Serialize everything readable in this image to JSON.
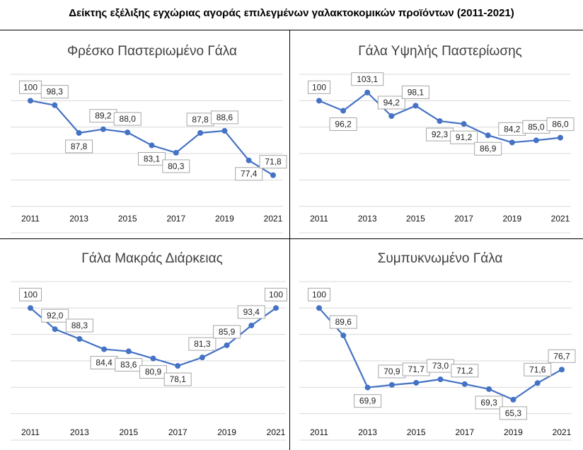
{
  "title": "Δείκτης εξέλιξης εγχώριας αγοράς επιλεγμένων γαλακτοκομικών προϊόντων (2011-2021)",
  "colors": {
    "line": "#4472C4",
    "grid": "#d9d9d9",
    "label_border": "#a6a6a6"
  },
  "chart_data": [
    {
      "type": "line",
      "title": "Φρέσκο Παστεριωμένο Γάλα",
      "x": [
        "2011",
        "2012",
        "2013",
        "2014",
        "2015",
        "2016",
        "2017",
        "2018",
        "2019",
        "2020",
        "2021"
      ],
      "x_tick_labels": [
        "2011",
        "2013",
        "2015",
        "2017",
        "2019",
        "2021"
      ],
      "values": [
        100,
        98.3,
        87.8,
        89.2,
        88.0,
        83.1,
        80.3,
        87.8,
        88.6,
        77.4,
        71.8
      ],
      "labels": [
        "100",
        "98,3",
        "87,8",
        "89,2",
        "88,0",
        "83,1",
        "80,3",
        "87,8",
        "88,6",
        "77,4",
        "71,8"
      ],
      "ylim": [
        50,
        110
      ],
      "grid": true
    },
    {
      "type": "line",
      "title": "Γάλα Υψηλής Παστερίωσης",
      "x": [
        "2011",
        "2012",
        "2013",
        "2014",
        "2015",
        "2016",
        "2017",
        "2018",
        "2019",
        "2020",
        "2021"
      ],
      "x_tick_labels": [
        "2011",
        "2013",
        "2015",
        "2017",
        "2019",
        "2021"
      ],
      "values": [
        100,
        96.2,
        103.1,
        94.2,
        98.1,
        92.3,
        91.2,
        86.9,
        84.2,
        85.0,
        86.0
      ],
      "labels": [
        "100",
        "96,2",
        "103,1",
        "94,2",
        "98,1",
        "92,3",
        "91,2",
        "86,9",
        "84,2",
        "85,0",
        "86,0"
      ],
      "ylim": [
        50,
        110
      ],
      "grid": true
    },
    {
      "type": "line",
      "title": "Γάλα Μακράς Διάρκειας",
      "x": [
        "2011",
        "2012",
        "2013",
        "2014",
        "2015",
        "2016",
        "2017",
        "2018",
        "2019",
        "2020",
        "2021"
      ],
      "x_tick_labels": [
        "2011",
        "2013",
        "2015",
        "2017",
        "2019",
        "2021"
      ],
      "values": [
        100,
        92.0,
        88.3,
        84.4,
        83.6,
        80.9,
        78.1,
        81.3,
        85.9,
        93.4,
        100
      ],
      "labels": [
        "100",
        "92,0",
        "88,3",
        "84,4",
        "83,6",
        "80,9",
        "78,1",
        "81,3",
        "85,9",
        "93,4",
        "100"
      ],
      "ylim": [
        50,
        110
      ],
      "grid": true
    },
    {
      "type": "line",
      "title": "Συμπυκνωμένο Γάλα",
      "x": [
        "2011",
        "2012",
        "2013",
        "2014",
        "2015",
        "2016",
        "2017",
        "2018",
        "2019",
        "2020",
        "2021"
      ],
      "x_tick_labels": [
        "2011",
        "2013",
        "2015",
        "2017",
        "2019",
        "2021"
      ],
      "values": [
        100,
        89.6,
        69.9,
        70.9,
        71.7,
        73.0,
        71.2,
        69.3,
        65.3,
        71.6,
        76.7
      ],
      "labels": [
        "100",
        "89,6",
        "69,9",
        "70,9",
        "71,7",
        "73,0",
        "71,2",
        "69,3",
        "65,3",
        "71,6",
        "76,7"
      ],
      "ylim": [
        50,
        110
      ],
      "grid": true
    }
  ]
}
